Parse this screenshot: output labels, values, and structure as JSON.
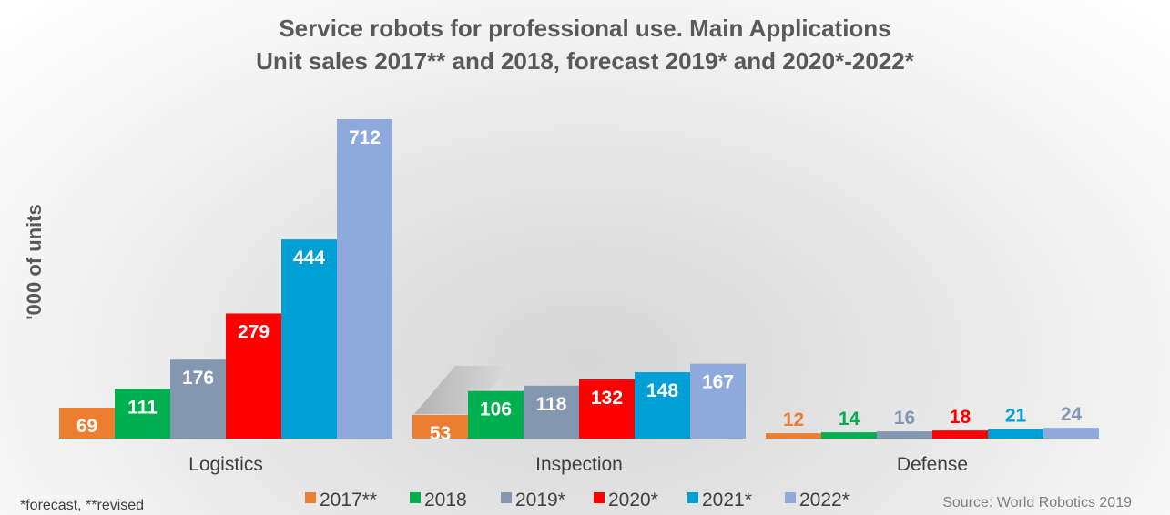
{
  "chart_data": {
    "type": "bar",
    "title": "Service robots for professional use. Main Applications",
    "subtitle": "Unit sales 2017** and 2018, forecast 2019* and 2020*-2022*",
    "ylabel": "'000 of units",
    "xlabel": "",
    "categories": [
      "Logistics",
      "Inspection",
      "Defense"
    ],
    "series": [
      {
        "name": "2017**",
        "color": "#ED7D31",
        "label_color": "#ED7D31",
        "values": [
          69,
          53,
          12
        ]
      },
      {
        "name": "2018",
        "color": "#00B050",
        "label_color": "#00B050",
        "values": [
          111,
          106,
          14
        ]
      },
      {
        "name": "2019*",
        "color": "#8497B0",
        "label_color": "#8497B0",
        "values": [
          176,
          118,
          16
        ]
      },
      {
        "name": "2020*",
        "color": "#FF0000",
        "label_color": "#FF0000",
        "values": [
          279,
          132,
          18
        ]
      },
      {
        "name": "2021*",
        "color": "#00A0D6",
        "label_color": "#00A0D6",
        "values": [
          444,
          148,
          21
        ]
      },
      {
        "name": "2022*",
        "color": "#8EA9DB",
        "label_color": "#8497B0",
        "values": [
          712,
          167,
          24
        ]
      }
    ],
    "ylim": [
      0,
      712
    ],
    "grid": false,
    "legend_position": "bottom",
    "data_label_color_large": "#FFFFFF"
  },
  "footnote": "*forecast, **revised",
  "source": "Source: World Robotics 2019"
}
